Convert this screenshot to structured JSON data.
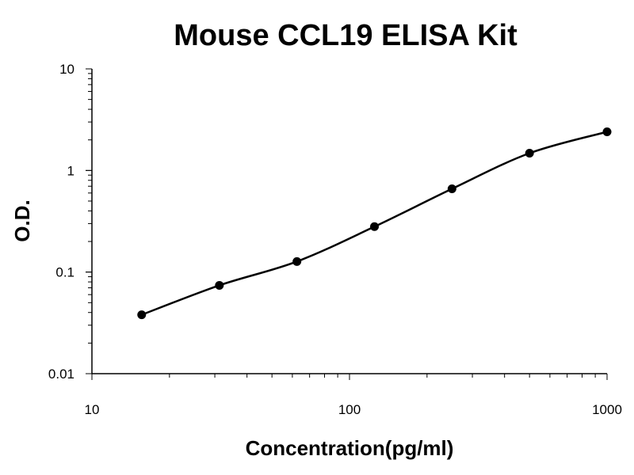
{
  "chart_data": {
    "type": "scatter",
    "title": "Mouse CCL19 ELISA Kit",
    "xlabel": "Concentration(pg/ml)",
    "ylabel": "O.D.",
    "xscale": "log",
    "yscale": "log",
    "xlim": [
      10,
      1000
    ],
    "ylim": [
      0.01,
      10
    ],
    "x_ticks": [
      {
        "value": 10,
        "label": "10"
      },
      {
        "value": 100,
        "label": "100"
      },
      {
        "value": 1000,
        "label": "1000"
      }
    ],
    "y_ticks": [
      {
        "value": 0.01,
        "label": "0.01"
      },
      {
        "value": 0.1,
        "label": "0.1"
      },
      {
        "value": 1,
        "label": "1"
      },
      {
        "value": 10,
        "label": "10"
      }
    ],
    "grid": false,
    "fit_curve": true,
    "series": [
      {
        "x": [
          15.6,
          31.25,
          62.5,
          125,
          250,
          500,
          1000
        ],
        "y": [
          0.038,
          0.074,
          0.127,
          0.28,
          0.66,
          1.48,
          2.4
        ],
        "color": "#000000"
      }
    ]
  }
}
